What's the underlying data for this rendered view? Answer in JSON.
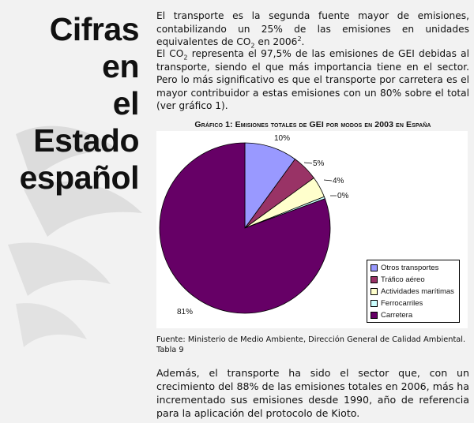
{
  "title": {
    "line1": "Cifras en",
    "line2": "el Estado",
    "line3": "español"
  },
  "paragraph1": {
    "before_sup": "El transporte es la segunda fuente mayor de emisiones, contabilizando un 25% de las emisiones en unidades equivalentes de CO",
    "sub": "2",
    "middle": " en 2006",
    "sup": "2",
    "after": "."
  },
  "paragraph2": {
    "before_sub": "El CO",
    "sub": "2",
    "after": " representa el 97,5% de las emisiones de GEI debidas al transporte, siendo el que más importancia tiene en el sector. Pero lo más significativo es que el transporte por carretera es el mayor contribuidor a estas emisiones con un 80% sobre el total (ver gráfico 1)."
  },
  "chart_title": "Gráfico 1: Emisiones totales de GEI por modos en 2003 en España",
  "chart_data": {
    "type": "pie",
    "title": "Gráfico 1: Emisiones totales de GEI por modos en 2003 en España",
    "slices": [
      {
        "name": "Otros transportes",
        "value": 10,
        "label": "10%",
        "color": "#9999ff"
      },
      {
        "name": "Tráfico aéreo",
        "value": 5,
        "label": "5%",
        "color": "#993366"
      },
      {
        "name": "Actividades marítimas",
        "value": 4,
        "label": "4%",
        "color": "#ffffcc"
      },
      {
        "name": "Ferrocarriles",
        "value": 0.4,
        "label": "0%",
        "color": "#ccffff"
      },
      {
        "name": "Carretera",
        "value": 80.6,
        "label": "81%",
        "color": "#660066"
      }
    ],
    "legend_position": "bottom-right"
  },
  "source": "Fuente: Ministerio de Medio Ambiente, Dirección General de Calidad Ambiental. Tabla 9",
  "paragraph3": "Además, el transporte ha sido el sector que, con un crecimiento del 88% de las emisiones totales en 2006, más ha incrementado sus emisiones desde 1990, año de referencia para la aplicación del protocolo de Kioto."
}
